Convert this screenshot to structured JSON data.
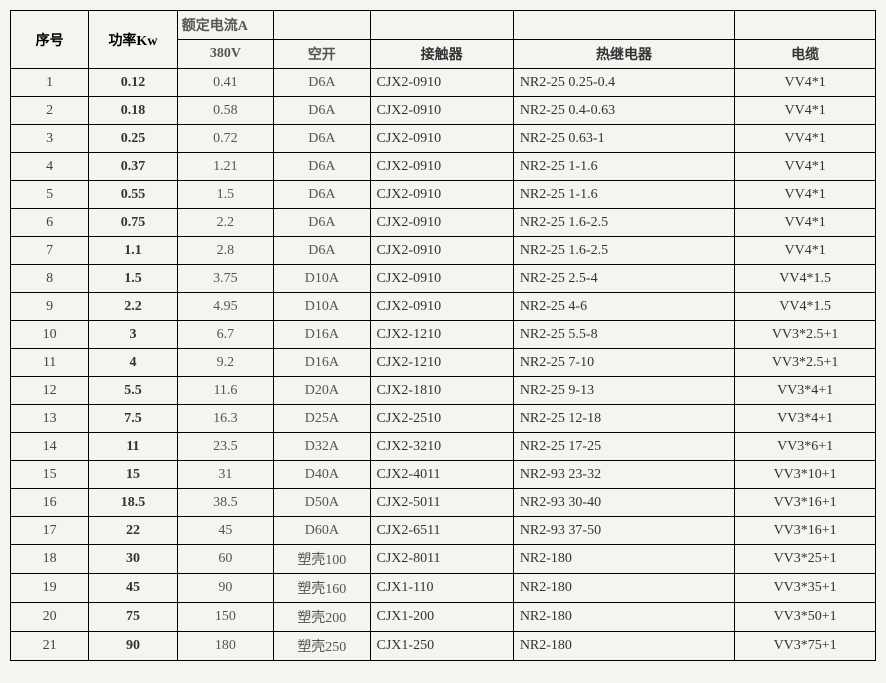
{
  "table": {
    "headers": {
      "seq": "序号",
      "power": "功率Kw",
      "rated_current_group": "额定电流A",
      "v380": "380V",
      "switch": "空开",
      "contactor": "接触器",
      "relay": "热继电器",
      "cable": "电缆"
    },
    "rows": [
      {
        "idx": "1",
        "power": "0.12",
        "v380": "0.41",
        "switch": "D6A",
        "contactor": "CJX2-0910",
        "relay": "NR2-25 0.25-0.4",
        "cable": "VV4*1"
      },
      {
        "idx": "2",
        "power": "0.18",
        "v380": "0.58",
        "switch": "D6A",
        "contactor": "CJX2-0910",
        "relay": "NR2-25 0.4-0.63",
        "cable": "VV4*1"
      },
      {
        "idx": "3",
        "power": "0.25",
        "v380": "0.72",
        "switch": "D6A",
        "contactor": "CJX2-0910",
        "relay": "NR2-25 0.63-1",
        "cable": "VV4*1"
      },
      {
        "idx": "4",
        "power": "0.37",
        "v380": "1.21",
        "switch": "D6A",
        "contactor": "CJX2-0910",
        "relay": "NR2-25 1-1.6",
        "cable": "VV4*1"
      },
      {
        "idx": "5",
        "power": "0.55",
        "v380": "1.5",
        "switch": "D6A",
        "contactor": "CJX2-0910",
        "relay": "NR2-25 1-1.6",
        "cable": "VV4*1"
      },
      {
        "idx": "6",
        "power": "0.75",
        "v380": "2.2",
        "switch": "D6A",
        "contactor": "CJX2-0910",
        "relay": "NR2-25 1.6-2.5",
        "cable": "VV4*1"
      },
      {
        "idx": "7",
        "power": "1.1",
        "v380": "2.8",
        "switch": "D6A",
        "contactor": "CJX2-0910",
        "relay": "NR2-25 1.6-2.5",
        "cable": "VV4*1"
      },
      {
        "idx": "8",
        "power": "1.5",
        "v380": "3.75",
        "switch": "D10A",
        "contactor": "CJX2-0910",
        "relay": "NR2-25 2.5-4",
        "cable": "VV4*1.5"
      },
      {
        "idx": "9",
        "power": "2.2",
        "v380": "4.95",
        "switch": "D10A",
        "contactor": "CJX2-0910",
        "relay": "NR2-25 4-6",
        "cable": "VV4*1.5"
      },
      {
        "idx": "10",
        "power": "3",
        "v380": "6.7",
        "switch": "D16A",
        "contactor": "CJX2-1210",
        "relay": "NR2-25 5.5-8",
        "cable": "VV3*2.5+1"
      },
      {
        "idx": "11",
        "power": "4",
        "v380": "9.2",
        "switch": "D16A",
        "contactor": "CJX2-1210",
        "relay": "NR2-25 7-10",
        "cable": "VV3*2.5+1"
      },
      {
        "idx": "12",
        "power": "5.5",
        "v380": "11.6",
        "switch": "D20A",
        "contactor": "CJX2-1810",
        "relay": "NR2-25 9-13",
        "cable": "VV3*4+1"
      },
      {
        "idx": "13",
        "power": "7.5",
        "v380": "16.3",
        "switch": "D25A",
        "contactor": "CJX2-2510",
        "relay": "NR2-25 12-18",
        "cable": "VV3*4+1"
      },
      {
        "idx": "14",
        "power": "11",
        "v380": "23.5",
        "switch": "D32A",
        "contactor": "CJX2-3210",
        "relay": "NR2-25 17-25",
        "cable": "VV3*6+1"
      },
      {
        "idx": "15",
        "power": "15",
        "v380": "31",
        "switch": "D40A",
        "contactor": "CJX2-4011",
        "relay": "NR2-93 23-32",
        "cable": "VV3*10+1"
      },
      {
        "idx": "16",
        "power": "18.5",
        "v380": "38.5",
        "switch": "D50A",
        "contactor": "CJX2-5011",
        "relay": "NR2-93 30-40",
        "cable": "VV3*16+1"
      },
      {
        "idx": "17",
        "power": "22",
        "v380": "45",
        "switch": "D60A",
        "contactor": "CJX2-6511",
        "relay": "NR2-93 37-50",
        "cable": "VV3*16+1"
      },
      {
        "idx": "18",
        "power": "30",
        "v380": "60",
        "switch": "塑壳100",
        "contactor": "CJX2-8011",
        "relay": "NR2-180",
        "cable": "VV3*25+1"
      },
      {
        "idx": "19",
        "power": "45",
        "v380": "90",
        "switch": "塑壳160",
        "contactor": "CJX1-110",
        "relay": "NR2-180",
        "cable": "VV3*35+1"
      },
      {
        "idx": "20",
        "power": "75",
        "v380": "150",
        "switch": "塑壳200",
        "contactor": "CJX1-200",
        "relay": "NR2-180",
        "cable": "VV3*50+1"
      },
      {
        "idx": "21",
        "power": "90",
        "v380": "180",
        "switch": "塑壳250",
        "contactor": "CJX1-250",
        "relay": "NR2-180",
        "cable": "VV3*75+1"
      }
    ],
    "colors": {
      "background": "#f5f4f0",
      "border": "#000000",
      "text": "#333333",
      "dim_text": "#555555"
    },
    "font_family": "SimSun",
    "font_size_pt": 10
  }
}
